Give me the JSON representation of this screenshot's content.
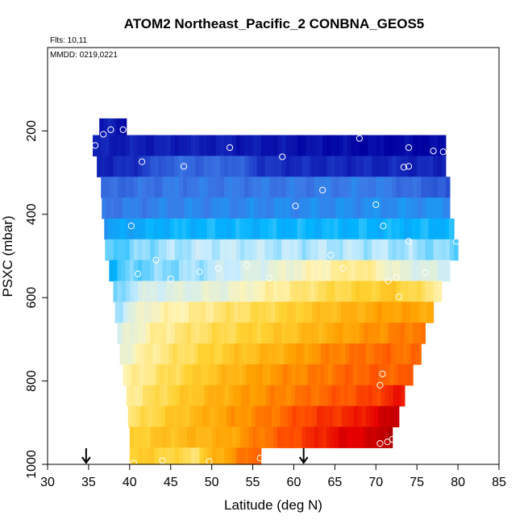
{
  "chart_data": {
    "type": "heatmap",
    "title": "ATOM2 Northeast_Pacific_2 CONBNA_GEOS5",
    "subtitle": "Flts: 10,11",
    "annotation": "MMDD: 0219,0221",
    "xlabel": "Latitude (deg N)",
    "ylabel": "PSXC (mbar)",
    "xlim": [
      30,
      85
    ],
    "ylim": [
      1000,
      0
    ],
    "y_reversed": true,
    "x_ticks": [
      "30",
      "35",
      "40",
      "45",
      "50",
      "55",
      "60",
      "65",
      "70",
      "75",
      "80",
      "85"
    ],
    "y_ticks": [
      "200",
      "400",
      "600",
      "800",
      "1000"
    ],
    "grid": false,
    "legend": "none",
    "colormap": [
      "#0000a0",
      "#1e3cc8",
      "#3c78e6",
      "#00b4ff",
      "#c8ecff",
      "#fff4b4",
      "#ffd232",
      "#ffa000",
      "#ff5000",
      "#e60000",
      "#a00000"
    ],
    "bands": [
      {
        "p_top": 170,
        "p_bot": 210,
        "lat_min": 36.3,
        "lat_max": 39.6,
        "levels": [
          [
            36.3,
            0.5
          ],
          [
            38.0,
            0.5
          ],
          [
            38.5,
            0.15
          ]
        ]
      },
      {
        "p_top": 210,
        "p_bot": 260,
        "lat_min": 35.5,
        "lat_max": 78.5,
        "levels": [
          [
            35.5,
            0.5
          ],
          [
            50,
            0.5
          ],
          [
            60,
            0.3
          ],
          [
            65,
            0.2
          ],
          [
            70,
            0.1
          ],
          [
            78.5,
            0.1
          ]
        ]
      },
      {
        "p_top": 260,
        "p_bot": 310,
        "lat_min": 36.0,
        "lat_max": 78.5,
        "levels": [
          [
            36,
            0.6
          ],
          [
            40,
            0.7
          ],
          [
            45,
            1.7
          ],
          [
            53,
            1.7
          ],
          [
            56,
            0.9
          ],
          [
            60,
            0.7
          ],
          [
            78.5,
            0.6
          ]
        ]
      },
      {
        "p_top": 310,
        "p_bot": 360,
        "lat_min": 36.5,
        "lat_max": 79.0,
        "levels": [
          [
            36.5,
            1.7
          ],
          [
            45,
            2.0
          ],
          [
            60,
            2.0
          ],
          [
            70,
            2.1
          ],
          [
            78,
            1.5
          ],
          [
            79,
            1.2
          ]
        ]
      },
      {
        "p_top": 360,
        "p_bot": 410,
        "lat_min": 36.6,
        "lat_max": 79.0,
        "levels": [
          [
            36.6,
            2.0
          ],
          [
            45,
            2.2
          ],
          [
            60,
            2.3
          ],
          [
            79,
            2.4
          ]
        ]
      },
      {
        "p_top": 410,
        "p_bot": 460,
        "lat_min": 36.9,
        "lat_max": 79.5,
        "levels": [
          [
            36.9,
            2.6
          ],
          [
            45,
            3.0
          ],
          [
            70,
            3.0
          ],
          [
            79.5,
            3.0
          ]
        ]
      },
      {
        "p_top": 460,
        "p_bot": 510,
        "lat_min": 37.0,
        "lat_max": 80.0,
        "levels": [
          [
            37,
            3.3
          ],
          [
            42,
            3.7
          ],
          [
            50,
            4.0
          ],
          [
            60,
            3.9
          ],
          [
            70,
            3.9
          ],
          [
            80,
            3.6
          ]
        ]
      },
      {
        "p_top": 510,
        "p_bot": 560,
        "lat_min": 37.5,
        "lat_max": 79.0,
        "levels": [
          [
            37.5,
            3.0
          ],
          [
            40,
            3.5
          ],
          [
            48,
            3.8
          ],
          [
            55,
            4.3
          ],
          [
            62,
            4.9
          ],
          [
            68,
            5.4
          ],
          [
            73,
            4.5
          ],
          [
            79,
            4.2
          ]
        ]
      },
      {
        "p_top": 560,
        "p_bot": 610,
        "lat_min": 38.0,
        "lat_max": 78.0,
        "levels": [
          [
            38,
            3.3
          ],
          [
            41,
            4.2
          ],
          [
            52,
            4.6
          ],
          [
            58,
            5.2
          ],
          [
            65,
            5.8
          ],
          [
            72,
            6.2
          ],
          [
            78,
            5.2
          ]
        ]
      },
      {
        "p_top": 610,
        "p_bot": 660,
        "lat_min": 38.2,
        "lat_max": 77.0,
        "levels": [
          [
            38.2,
            3.8
          ],
          [
            42,
            4.8
          ],
          [
            50,
            5.4
          ],
          [
            58,
            5.9
          ],
          [
            65,
            6.5
          ],
          [
            72,
            7.0
          ],
          [
            77,
            6.8
          ]
        ]
      },
      {
        "p_top": 660,
        "p_bot": 710,
        "lat_min": 38.5,
        "lat_max": 76.0,
        "levels": [
          [
            38.5,
            4.2
          ],
          [
            43,
            5.2
          ],
          [
            50,
            5.7
          ],
          [
            58,
            6.2
          ],
          [
            65,
            6.8
          ],
          [
            70,
            7.2
          ],
          [
            76,
            7.6
          ]
        ]
      },
      {
        "p_top": 710,
        "p_bot": 760,
        "lat_min": 38.8,
        "lat_max": 75.5,
        "levels": [
          [
            38.8,
            4.6
          ],
          [
            43,
            5.3
          ],
          [
            50,
            6.0
          ],
          [
            58,
            6.7
          ],
          [
            65,
            7.4
          ],
          [
            70,
            7.7
          ],
          [
            75.5,
            7.6
          ]
        ]
      },
      {
        "p_top": 760,
        "p_bot": 810,
        "lat_min": 39.2,
        "lat_max": 74.5,
        "levels": [
          [
            39.2,
            5.0
          ],
          [
            44,
            5.6
          ],
          [
            50,
            6.3
          ],
          [
            56,
            7.0
          ],
          [
            62,
            7.4
          ],
          [
            68,
            7.8
          ],
          [
            74.5,
            7.8
          ]
        ]
      },
      {
        "p_top": 810,
        "p_bot": 860,
        "lat_min": 39.6,
        "lat_max": 73.5,
        "levels": [
          [
            39.6,
            5.2
          ],
          [
            44,
            5.8
          ],
          [
            50,
            6.6
          ],
          [
            56,
            7.2
          ],
          [
            62,
            7.6
          ],
          [
            70,
            8.2
          ],
          [
            73.5,
            8.8
          ]
        ]
      },
      {
        "p_top": 860,
        "p_bot": 910,
        "lat_min": 39.8,
        "lat_max": 72.8,
        "levels": [
          [
            39.8,
            5.4
          ],
          [
            45,
            6.2
          ],
          [
            52,
            7.0
          ],
          [
            58,
            7.6
          ],
          [
            62,
            8.2
          ],
          [
            68,
            8.6
          ],
          [
            72.8,
            9.6
          ]
        ]
      },
      {
        "p_top": 910,
        "p_bot": 960,
        "lat_min": 40.0,
        "lat_max": 72.0,
        "levels": [
          [
            40,
            6.0
          ],
          [
            45,
            6.4
          ],
          [
            52,
            6.8
          ],
          [
            56,
            7.5
          ],
          [
            62,
            8.4
          ],
          [
            66,
            9.0
          ],
          [
            70,
            9.3
          ],
          [
            72,
            10.0
          ]
        ]
      },
      {
        "p_top": 960,
        "p_bot": 1000,
        "lat_min": 40.0,
        "lat_max": 56.0,
        "levels": [
          [
            40,
            6.2
          ],
          [
            44,
            6.0
          ],
          [
            48,
            5.6
          ],
          [
            50,
            6.5
          ],
          [
            54,
            7.5
          ],
          [
            56,
            8.0
          ]
        ]
      }
    ],
    "observations": [
      [
        37.7,
        197
      ],
      [
        39.2,
        197
      ],
      [
        36.8,
        208
      ],
      [
        35.8,
        235
      ],
      [
        52.2,
        240
      ],
      [
        68.0,
        218
      ],
      [
        74.0,
        240
      ],
      [
        77.0,
        248
      ],
      [
        78.2,
        250
      ],
      [
        41.5,
        274
      ],
      [
        46.6,
        285
      ],
      [
        58.6,
        262
      ],
      [
        73.4,
        287
      ],
      [
        74.0,
        285
      ],
      [
        63.5,
        342
      ],
      [
        60.2,
        380
      ],
      [
        70.0,
        377
      ],
      [
        40.2,
        428
      ],
      [
        70.9,
        428
      ],
      [
        74.0,
        465
      ],
      [
        79.8,
        465
      ],
      [
        43.2,
        510
      ],
      [
        64.5,
        498
      ],
      [
        66.0,
        530
      ],
      [
        41.0,
        543
      ],
      [
        45.0,
        555
      ],
      [
        48.5,
        538
      ],
      [
        50.8,
        530
      ],
      [
        54.3,
        522
      ],
      [
        57.0,
        553
      ],
      [
        71.5,
        560
      ],
      [
        72.5,
        552
      ],
      [
        76.0,
        540
      ],
      [
        72.8,
        598
      ],
      [
        70.8,
        783
      ],
      [
        70.5,
        810
      ],
      [
        70.5,
        950
      ],
      [
        71.4,
        946
      ],
      [
        72.0,
        940
      ],
      [
        40.5,
        997
      ],
      [
        44.0,
        991
      ],
      [
        49.7,
        993
      ],
      [
        55.9,
        985
      ]
    ],
    "arrows": [
      34.7,
      61.2
    ]
  }
}
